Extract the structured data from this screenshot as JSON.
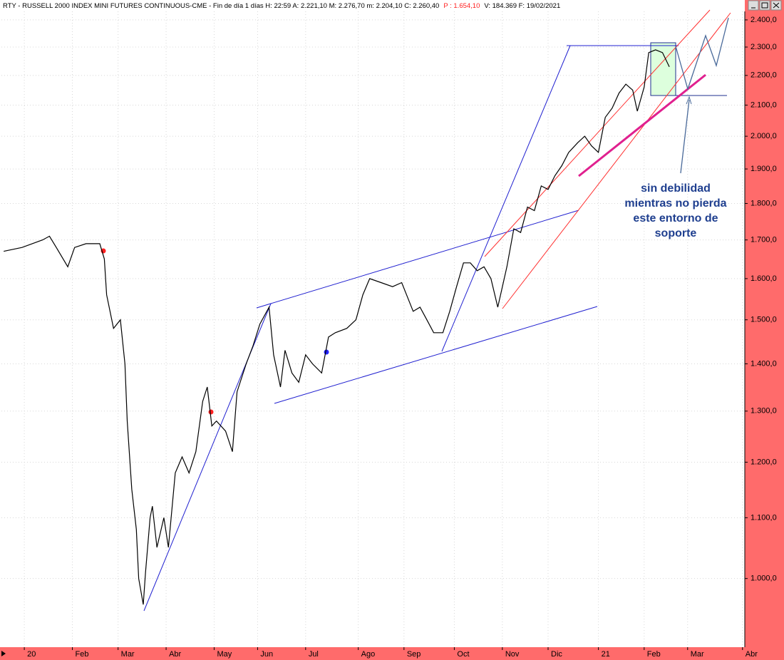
{
  "header": {
    "text_before": "RTY - RUSSELL 2000 INDEX MINI FUTURES CONTINUOUS-CME - Fin de día 1 días  H: 22:59  A: 2.221,10  M: 2.276,70  m: 2.204,10  C: 2.260,40",
    "p_text": "P : 1.654,10",
    "text_after": "V: 184.369  F: 19/02/2021"
  },
  "chart_data": {
    "type": "line",
    "color": "#000000",
    "log_scale": true,
    "grid": true,
    "x": [
      1,
      9,
      18,
      21,
      24,
      29,
      32,
      37,
      43,
      45,
      46,
      49,
      52,
      54,
      55,
      57,
      59,
      60,
      62,
      63,
      65,
      66,
      68,
      71,
      73,
      76,
      79,
      82,
      85,
      88,
      90,
      92,
      94,
      98,
      101,
      103,
      107,
      110,
      113,
      117,
      119,
      122,
      124,
      127,
      130,
      133,
      136,
      140,
      143,
      146,
      151,
      155,
      158,
      161,
      166,
      171,
      175,
      180,
      183,
      186,
      189,
      193,
      196,
      199,
      202,
      205,
      208,
      211,
      214,
      217,
      221,
      224,
      227,
      230,
      233,
      236,
      239,
      242,
      245,
      248,
      252,
      255,
      258,
      261,
      264,
      267,
      270,
      273,
      276,
      278,
      281,
      283,
      286,
      289,
      292
    ],
    "values": [
      1670,
      1680,
      1700,
      1710,
      1680,
      1630,
      1680,
      1690,
      1690,
      1650,
      1560,
      1480,
      1500,
      1400,
      1280,
      1150,
      1080,
      1000,
      960,
      1010,
      1100,
      1120,
      1050,
      1100,
      1050,
      1180,
      1210,
      1180,
      1220,
      1320,
      1350,
      1270,
      1280,
      1260,
      1220,
      1340,
      1400,
      1440,
      1490,
      1530,
      1420,
      1350,
      1430,
      1380,
      1360,
      1420,
      1400,
      1380,
      1460,
      1470,
      1480,
      1500,
      1560,
      1600,
      1590,
      1580,
      1590,
      1520,
      1530,
      1500,
      1470,
      1470,
      1520,
      1580,
      1640,
      1640,
      1620,
      1630,
      1600,
      1530,
      1630,
      1730,
      1720,
      1790,
      1780,
      1850,
      1840,
      1880,
      1910,
      1950,
      1980,
      2000,
      1970,
      1950,
      2060,
      2090,
      2140,
      2170,
      2150,
      2080,
      2160,
      2280,
      2290,
      2280,
      2230
    ],
    "xlim": [
      0,
      325
    ],
    "xticks": [
      {
        "value": 10,
        "label": "20"
      },
      {
        "value": 31,
        "label": "Feb"
      },
      {
        "value": 51,
        "label": "Mar"
      },
      {
        "value": 72,
        "label": "Abr"
      },
      {
        "value": 93,
        "label": "May"
      },
      {
        "value": 112,
        "label": "Jun"
      },
      {
        "value": 133,
        "label": "Jul"
      },
      {
        "value": 156,
        "label": "Ago"
      },
      {
        "value": 176,
        "label": "Sep"
      },
      {
        "value": 198,
        "label": "Oct"
      },
      {
        "value": 219,
        "label": "Nov"
      },
      {
        "value": 239,
        "label": "Dic"
      },
      {
        "value": 261,
        "label": "21"
      },
      {
        "value": 281,
        "label": "Feb"
      },
      {
        "value": 300,
        "label": "Mar"
      },
      {
        "value": 324,
        "label": "Abr"
      }
    ],
    "ylim": [
      898,
      2454
    ],
    "yticks": [
      {
        "value": 1000,
        "label": "1.000,0"
      },
      {
        "value": 1100,
        "label": "1.100,0"
      },
      {
        "value": 1200,
        "label": "1.200,0"
      },
      {
        "value": 1300,
        "label": "1.300,0"
      },
      {
        "value": 1400,
        "label": "1.400,0"
      },
      {
        "value": 1500,
        "label": "1.500,0"
      },
      {
        "value": 1600,
        "label": "1.600,0"
      },
      {
        "value": 1700,
        "label": "1.700,0"
      },
      {
        "value": 1800,
        "label": "1.800,0"
      },
      {
        "value": 1900,
        "label": "1.900,0"
      },
      {
        "value": 2000,
        "label": "2.000,0"
      },
      {
        "value": 2100,
        "label": "2.100,0"
      },
      {
        "value": 2200,
        "label": "2.200,0"
      },
      {
        "value": 2300,
        "label": "2.300,0"
      },
      {
        "value": 2400,
        "label": "2.400,0"
      }
    ],
    "annotation": [
      "sin debilidad",
      "mientras no pierda",
      "este entorno de",
      "soporte"
    ]
  }
}
